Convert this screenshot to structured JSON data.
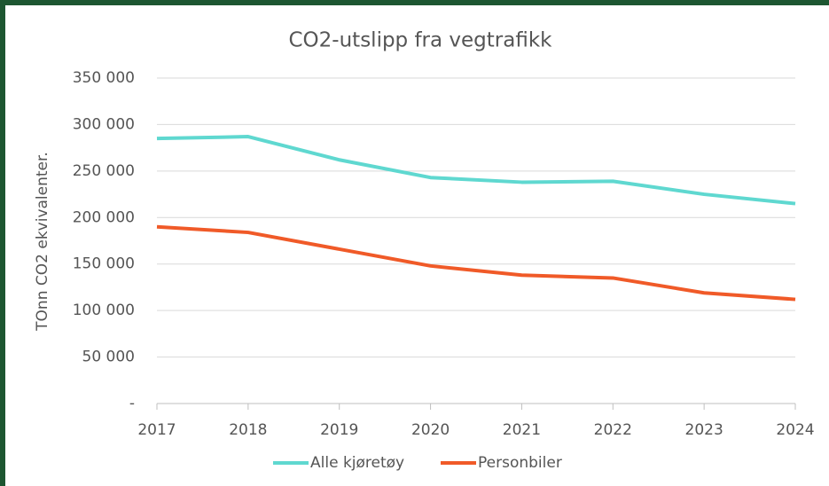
{
  "chart_data": {
    "type": "line",
    "title": "CO2-utslipp fra vegtrafikk",
    "y_label": "TOnn CO2 ekvivalenter.",
    "categories": [
      "2017",
      "2018",
      "2019",
      "2020",
      "2021",
      "2022",
      "2023",
      "2024"
    ],
    "series": [
      {
        "name": "Alle kjøretøy",
        "color": "#5fd8d0",
        "values": [
          285000,
          287000,
          262000,
          243000,
          238000,
          239000,
          225000,
          215000
        ]
      },
      {
        "name": "Personbiler",
        "color": "#f05a28",
        "values": [
          190000,
          184000,
          166000,
          148000,
          138000,
          135000,
          119000,
          112000
        ]
      }
    ],
    "ylim": [
      0,
      350000
    ],
    "yticks": [
      {
        "value": 0,
        "label": "-"
      },
      {
        "value": 50000,
        "label": "50 000"
      },
      {
        "value": 100000,
        "label": "100 000"
      },
      {
        "value": 150000,
        "label": "150 000"
      },
      {
        "value": 200000,
        "label": "200 000"
      },
      {
        "value": 250000,
        "label": "250 000"
      },
      {
        "value": 300000,
        "label": "300 000"
      },
      {
        "value": 350000,
        "label": "350 000"
      }
    ],
    "grid": true,
    "legend": "bottom"
  }
}
